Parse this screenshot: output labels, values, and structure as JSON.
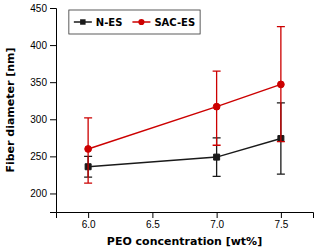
{
  "chart_data": {
    "type": "line",
    "x": [
      6.0,
      7.0,
      7.5
    ],
    "series": [
      {
        "name": "N-ES",
        "color": "#1a1a1a",
        "marker": "square",
        "values": [
          236,
          249,
          274
        ],
        "yerr_low": [
          14,
          26,
          48
        ],
        "yerr_high": [
          14,
          26,
          48
        ]
      },
      {
        "name": "SAC-ES",
        "color": "#cc0000",
        "marker": "circle",
        "values": [
          260,
          317,
          347
        ],
        "yerr_low": [
          46,
          52,
          77
        ],
        "yerr_high": [
          42,
          48,
          78
        ]
      }
    ],
    "xlabel": "PEO concentration [wt%]",
    "ylabel": "Fiber diameter [nm]",
    "xlim": [
      5.75,
      7.75
    ],
    "ylim": [
      175,
      450
    ],
    "xticks": [
      {
        "value": 6.0,
        "label": "6.0"
      },
      6.5,
      {
        "value": 7.0,
        "label": "7.0"
      },
      7.5
    ],
    "yticks": [
      200,
      250,
      300,
      350,
      400,
      450
    ],
    "legend": "upper left"
  }
}
